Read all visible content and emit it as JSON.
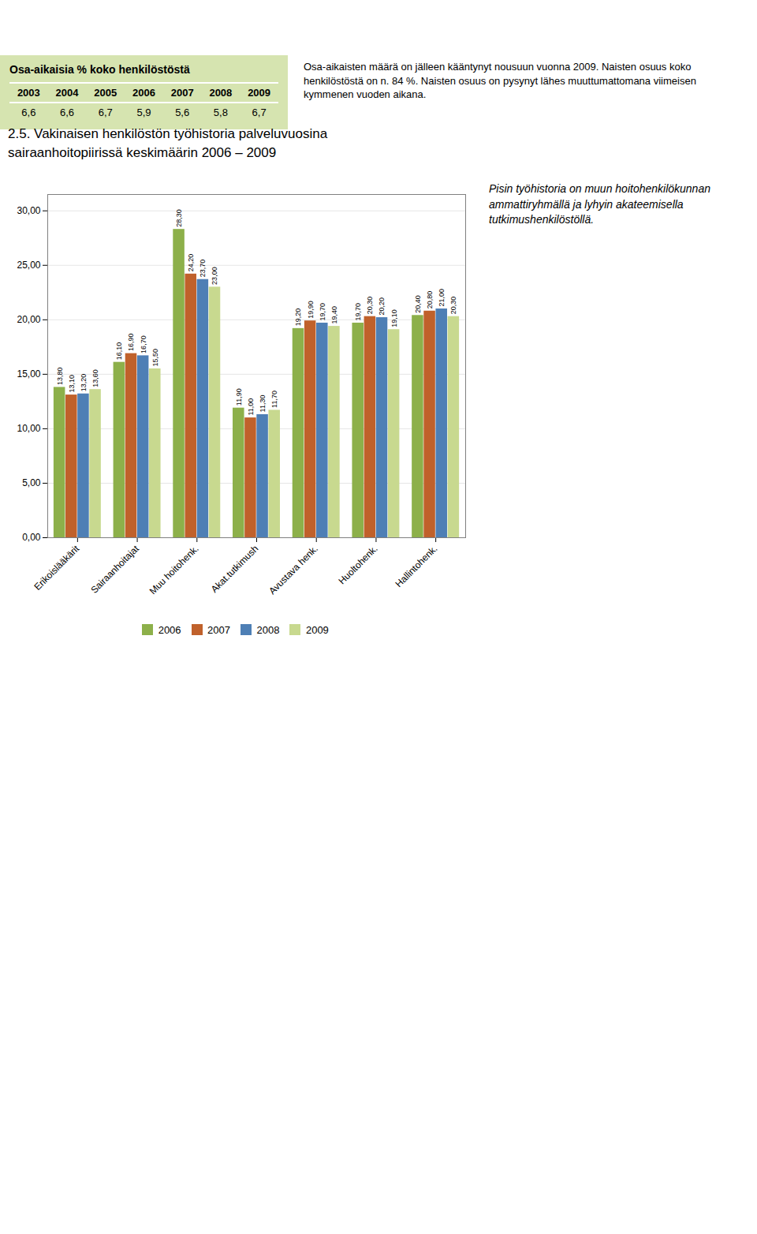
{
  "chart_data": [
    {
      "type": "table",
      "title": "Osa-aikaisia % koko henkilöstöstä",
      "categories": [
        "2003",
        "2004",
        "2005",
        "2006",
        "2007",
        "2008",
        "2009"
      ],
      "values": [
        6.6,
        6.6,
        6.7,
        5.9,
        5.6,
        5.8,
        6.7
      ],
      "value_labels": [
        "6,6",
        "6,6",
        "6,7",
        "5,9",
        "5,6",
        "5,8",
        "6,7"
      ],
      "color": "#d6e4b0",
      "annotations": [
        "Osa-aikaisten määrä on jälleen kääntynyt nousuun vuonna 2009. Naisten osuus koko henkilöstöstä on n. 84 %. Naisten osuus on pysynyt lähes muuttumattomana viimeisen kymmenen vuoden aikana."
      ]
    },
    {
      "type": "bar",
      "title": "2.5. Vakinaisen henkilöstön työhistoria palveluvuosina",
      "subtitle": "sairaanhoitopiirissä keskimäärin 2006 – 2009",
      "categories": [
        "Erikoislääkärit",
        "Sairaanhoitajat",
        "Muu hoitohenk.",
        "Akat.tutkimush",
        "Avustava henk.",
        "Huoltohenk.",
        "Hallintohenk."
      ],
      "series": [
        {
          "name": "2006",
          "color": "#8db04a",
          "values": [
            13.8,
            16.1,
            28.3,
            11.9,
            19.2,
            19.7,
            20.4
          ],
          "value_labels": [
            "13,80",
            "16,10",
            "28,30",
            "11,90",
            "19,20",
            "19,70",
            "20,40"
          ]
        },
        {
          "name": "2007",
          "color": "#c0612b",
          "values": [
            13.1,
            16.9,
            24.2,
            11.0,
            19.9,
            20.3,
            20.8
          ],
          "value_labels": [
            "13,10",
            "16,90",
            "24,20",
            "11,00",
            "19,90",
            "20,30",
            "20,80"
          ]
        },
        {
          "name": "2008",
          "color": "#4e7fb5",
          "values": [
            13.2,
            16.7,
            23.7,
            11.3,
            19.7,
            20.2,
            21.0
          ],
          "value_labels": [
            "13,20",
            "16,70",
            "23,70",
            "11,30",
            "19,70",
            "20,20",
            "21,00"
          ]
        },
        {
          "name": "2009",
          "color": "#c8d98f",
          "values": [
            13.6,
            15.5,
            23.0,
            11.7,
            19.4,
            19.1,
            20.3
          ],
          "value_labels": [
            "13,60",
            "15,50",
            "23,00",
            "11,70",
            "19,40",
            "19,10",
            "20,30"
          ]
        }
      ],
      "ylim": [
        0,
        31.5
      ],
      "yticks": [
        {
          "value": 0,
          "label": "0,00"
        },
        {
          "value": 5,
          "label": "5,00"
        },
        {
          "value": 10,
          "label": "10,00"
        },
        {
          "value": 15,
          "label": "15,00"
        },
        {
          "value": 20,
          "label": "20,00"
        },
        {
          "value": 25,
          "label": "25,00"
        },
        {
          "value": 30,
          "label": "30,00"
        }
      ],
      "grid": true,
      "legend": "bottom",
      "data_labels": true,
      "annotations": [
        "Pisin työhistoria on muun hoitohenkilökunnan ammattiryhmällä ja lyhyin akateemisella tutkimushenkilöstöllä."
      ]
    }
  ]
}
